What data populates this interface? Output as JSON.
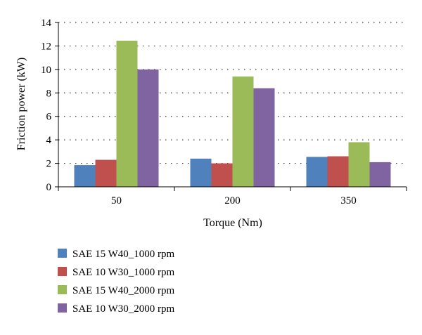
{
  "chart_data": {
    "type": "bar",
    "title": "",
    "xlabel": "Torque (Nm)",
    "ylabel": "Friction power (kW)",
    "categories": [
      "50",
      "200",
      "350"
    ],
    "ylim": [
      0,
      14
    ],
    "yticks": [
      "0",
      "2",
      "4",
      "6",
      "8",
      "10",
      "12",
      "14"
    ],
    "grid": "horizontal-dotted",
    "legend_position": "bottom",
    "series": [
      {
        "name": "SAE 15 W40_1000 rpm",
        "values": [
          1.85,
          2.4,
          2.55
        ],
        "color": "#4f81bd"
      },
      {
        "name": "SAE 10 W30_1000 rpm",
        "values": [
          2.3,
          2.0,
          2.6
        ],
        "color": "#c0504d"
      },
      {
        "name": "SAE 15 W40_2000 rpm",
        "values": [
          12.45,
          9.4,
          3.8
        ],
        "color": "#9bbb59"
      },
      {
        "name": "SAE 10 W30_2000 rpm",
        "values": [
          10.0,
          8.4,
          2.1
        ],
        "color": "#8064a2"
      }
    ]
  }
}
